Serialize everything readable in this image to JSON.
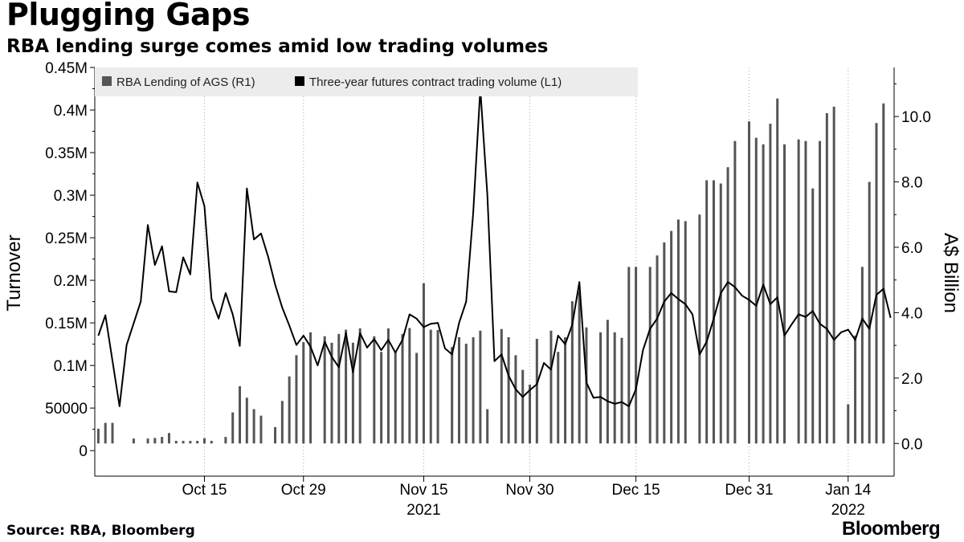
{
  "header": {
    "title": "Plugging Gaps",
    "subtitle": "RBA lending surge comes amid low trading volumes"
  },
  "footer": {
    "source": "Source: RBA, Bloomberg",
    "brand": "Bloomberg"
  },
  "colors": {
    "bar": "#555555",
    "line": "#000000",
    "legend_bg": "#ececec",
    "grid": "#aaaaaa"
  },
  "chart_data": {
    "type": "bar+line",
    "title": "Plugging Gaps",
    "subtitle": "RBA lending surge comes amid low trading volumes",
    "legend_position": "top-left",
    "grid": "vertical dotted at month ticks",
    "left_axis": {
      "label": "Turnover",
      "range": [
        -30000,
        450000
      ],
      "ticks": [
        0,
        50000,
        100000,
        150000,
        200000,
        250000,
        300000,
        350000,
        400000,
        450000
      ],
      "tick_labels": [
        "0",
        "50000",
        "0.1M",
        "0.15M",
        "0.2M",
        "0.25M",
        "0.3M",
        "0.35M",
        "0.4M",
        "0.45M"
      ]
    },
    "right_axis": {
      "label": "A$ Billion",
      "range": [
        -1.0,
        11.5
      ],
      "ticks": [
        0,
        2,
        4,
        6,
        8,
        10
      ],
      "tick_labels": [
        "0.0",
        "2.0",
        "4.0",
        "6.0",
        "8.0",
        "10.0"
      ]
    },
    "x_axis": {
      "start_day": 1,
      "end_day": 113,
      "day_labels": [
        {
          "day": 16,
          "label": "Oct 15"
        },
        {
          "day": 30,
          "label": "Oct 29"
        },
        {
          "day": 47,
          "label": "Nov 15"
        },
        {
          "day": 62,
          "label": "Nov 30"
        },
        {
          "day": 77,
          "label": "Dec 15"
        },
        {
          "day": 93,
          "label": "Dec 31"
        },
        {
          "day": 107,
          "label": "Jan 14"
        }
      ],
      "year_labels": [
        {
          "day": 47,
          "label": "2021"
        },
        {
          "day": 107,
          "label": "2022"
        }
      ]
    },
    "series": [
      {
        "name": "RBA Lending of AGS (R1)",
        "type": "bar",
        "axis": "right",
        "days": [
          1,
          2,
          3,
          6,
          8,
          9,
          10,
          11,
          12,
          13,
          14,
          15,
          16,
          17,
          19,
          20,
          21,
          22,
          23,
          24,
          26,
          27,
          28,
          29,
          30,
          31,
          33,
          34,
          35,
          36,
          37,
          38,
          40,
          41,
          42,
          43,
          44,
          45,
          46,
          47,
          48,
          49,
          51,
          52,
          53,
          54,
          55,
          56,
          58,
          59,
          60,
          61,
          62,
          63,
          65,
          66,
          67,
          68,
          69,
          70,
          72,
          73,
          74,
          75,
          76,
          77,
          79,
          80,
          81,
          82,
          83,
          84,
          86,
          87,
          88,
          89,
          90,
          91,
          93,
          94,
          95,
          96,
          97,
          98,
          100,
          101,
          102,
          103,
          104,
          105,
          107,
          108,
          109,
          110,
          111,
          112
        ],
        "values": [
          0.45,
          0.63,
          0.63,
          0.15,
          0.15,
          0.17,
          0.2,
          0.32,
          0.08,
          0.08,
          0.08,
          0.08,
          0.16,
          0.08,
          0.2,
          0.95,
          1.75,
          1.4,
          1.05,
          0.85,
          0.5,
          1.3,
          2.05,
          2.7,
          3.1,
          3.4,
          3.28,
          3.08,
          3.35,
          3.48,
          3.08,
          3.52,
          3.28,
          2.8,
          3.52,
          2.78,
          3.35,
          3.53,
          2.77,
          4.9,
          3.48,
          3.47,
          2.95,
          3.25,
          3.05,
          3.25,
          3.45,
          1.05,
          3.5,
          3.25,
          2.7,
          2.25,
          1.8,
          3.2,
          3.45,
          2.8,
          3.25,
          4.35,
          4.65,
          3.55,
          3.4,
          3.78,
          3.4,
          3.23,
          5.4,
          5.4,
          5.4,
          5.75,
          6.15,
          6.5,
          6.85,
          6.8,
          7.0,
          8.05,
          8.05,
          7.95,
          8.45,
          9.25,
          9.85,
          9.35,
          9.15,
          9.78,
          10.55,
          9.15,
          9.3,
          9.25,
          7.8,
          9.25,
          10.1,
          10.3,
          1.2,
          3.3,
          5.4,
          8.0,
          9.8,
          10.4
        ]
      },
      {
        "name": "Three-year futures contract trading volume (L1)",
        "type": "line",
        "axis": "left",
        "days": [
          1,
          2,
          4,
          5,
          7,
          8,
          9,
          10,
          11,
          12,
          13,
          14,
          15,
          16,
          17,
          18,
          19,
          20,
          21,
          22,
          23,
          24,
          25,
          26,
          27,
          28,
          29,
          30,
          31,
          32,
          33,
          34,
          35,
          36,
          37,
          38,
          39,
          40,
          41,
          42,
          43,
          44,
          45,
          46,
          47,
          48,
          49,
          50,
          51,
          52,
          53,
          54,
          55,
          56,
          57,
          58,
          59,
          60,
          61,
          62,
          63,
          64,
          65,
          66,
          67,
          68,
          69,
          70,
          71,
          72,
          73,
          74,
          75,
          76,
          77,
          78,
          79,
          80,
          81,
          82,
          83,
          84,
          85,
          86,
          87,
          88,
          89,
          90,
          91,
          92,
          93,
          94,
          95,
          96,
          97,
          98,
          99,
          100,
          101,
          102,
          103,
          104,
          105,
          106,
          107,
          108,
          109,
          110,
          111,
          112,
          113
        ],
        "values": [
          135000,
          159000,
          52000,
          124000,
          175000,
          265000,
          218000,
          240000,
          187000,
          186000,
          227000,
          207000,
          315000,
          287000,
          178000,
          155000,
          185000,
          160000,
          123000,
          308000,
          248000,
          255000,
          228000,
          195000,
          168000,
          147000,
          124000,
          135000,
          122000,
          100000,
          128000,
          110000,
          98000,
          138000,
          92000,
          138000,
          121000,
          131000,
          118000,
          130000,
          115000,
          130000,
          160000,
          155000,
          145000,
          149000,
          150000,
          120000,
          113000,
          150000,
          175000,
          280000,
          425000,
          300000,
          105000,
          113000,
          88000,
          72000,
          63000,
          71000,
          78000,
          103000,
          95000,
          135000,
          125000,
          148000,
          198000,
          80000,
          62000,
          63000,
          58000,
          55000,
          57000,
          52000,
          72000,
          118000,
          143000,
          155000,
          175000,
          185000,
          178000,
          172000,
          160000,
          113000,
          128000,
          155000,
          185000,
          198000,
          192000,
          182000,
          177000,
          170000,
          195000,
          172000,
          180000,
          135000,
          148000,
          160000,
          157000,
          164000,
          149000,
          143000,
          130000,
          139000,
          142000,
          130000,
          155000,
          143000,
          183000,
          190000,
          156000
        ]
      }
    ]
  }
}
